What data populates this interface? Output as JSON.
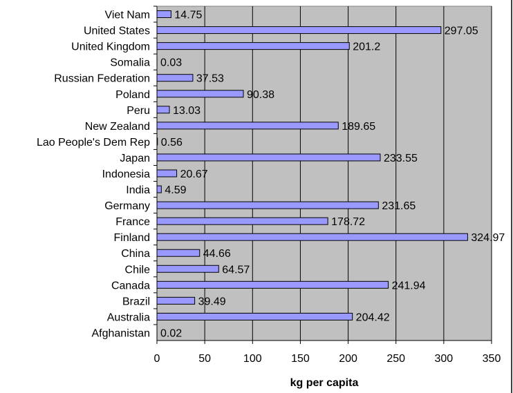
{
  "chart_data": {
    "type": "bar",
    "orientation": "horizontal",
    "title": "",
    "xlabel": "kg per capita",
    "ylabel": "",
    "xlim": [
      0,
      350
    ],
    "xticks": [
      0,
      50,
      100,
      150,
      200,
      250,
      300,
      350
    ],
    "grid": true,
    "legend": "none",
    "categories": [
      "Viet Nam",
      "United States",
      "United Kingdom",
      "Somalia",
      "Russian Federation",
      "Poland",
      "Peru",
      "New Zealand",
      "Lao People's Dem Rep",
      "Japan",
      "Indonesia",
      "India",
      "Germany",
      "France",
      "Finland",
      "China",
      "Chile",
      "Canada",
      "Brazil",
      "Australia",
      "Afghanistan"
    ],
    "values": [
      14.75,
      297.05,
      201.2,
      0.03,
      37.53,
      90.38,
      13.03,
      189.65,
      0.56,
      233.55,
      20.67,
      4.59,
      231.65,
      178.72,
      324.97,
      44.66,
      64.57,
      241.94,
      39.49,
      204.42,
      0.02
    ],
    "data_labels": [
      "14.75",
      "297.05",
      "201.2",
      "0.03",
      "37.53",
      "90.38",
      "13.03",
      "189.65",
      "0.56",
      "233.55",
      "20.67",
      "4.59",
      "231.65",
      "178.72",
      "324.97",
      "44.66",
      "64.57",
      "241.94",
      "39.49",
      "204.42",
      "0.02"
    ],
    "colors": {
      "plot_background": "#C0C0C0",
      "bar_fill": "#9999FF",
      "bar_stroke": "#000000",
      "gridline": "#000000"
    }
  }
}
